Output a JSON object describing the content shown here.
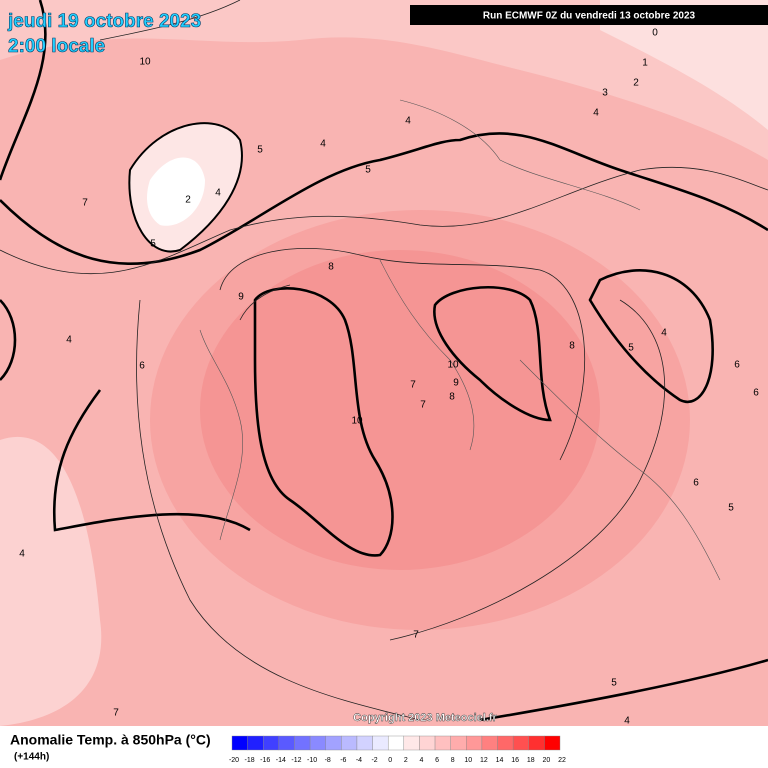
{
  "header": {
    "date": "jeudi 19 octobre 2023",
    "time": "2:00 locale",
    "run": "Run ECMWF 0Z du vendredi 13 octobre 2023"
  },
  "map": {
    "contour_labels": [
      10,
      0,
      1,
      2,
      3,
      4,
      4,
      5,
      4,
      2,
      5,
      7,
      5,
      8,
      9,
      4,
      6,
      10,
      10,
      9,
      8,
      7,
      7,
      8,
      5,
      4,
      6,
      6,
      6,
      5,
      4,
      7,
      5,
      4,
      7,
      4
    ],
    "copyright": "Copyright 2023 Meteociel.fr"
  },
  "legend": {
    "title": "Anomalie Temp. à 850hPa (°C)",
    "lead": "(+144h)",
    "ticks": [
      -20,
      -18,
      -16,
      -14,
      -12,
      -10,
      -8,
      -6,
      -4,
      -2,
      0,
      2,
      4,
      6,
      8,
      10,
      12,
      14,
      16,
      18,
      20,
      22
    ],
    "colors": [
      "#0000ff",
      "#2020ff",
      "#4040ff",
      "#5a5aff",
      "#7272ff",
      "#8a8aff",
      "#a2a2ff",
      "#babaff",
      "#d2d2ff",
      "#eaeaff",
      "#ffffff",
      "#ffe8e8",
      "#ffd4d4",
      "#ffc0c0",
      "#ffacac",
      "#ff9898",
      "#ff8080",
      "#ff6868",
      "#ff5050",
      "#ff3030",
      "#ff0000"
    ]
  }
}
